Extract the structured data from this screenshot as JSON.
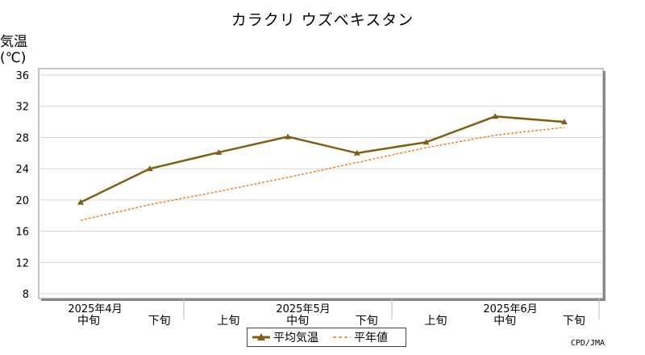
{
  "chart_data": {
    "type": "line",
    "title": "カラクリ ウズベキスタン",
    "ylabel_line1": "気温",
    "ylabel_line2": "(℃)",
    "ylim": [
      8,
      36
    ],
    "yticks": [
      "8",
      "12",
      "16",
      "20",
      "24",
      "28",
      "32",
      "36"
    ],
    "categories": [
      "中旬",
      "下旬",
      "上旬",
      "中旬",
      "下旬",
      "上旬",
      "中旬",
      "下旬"
    ],
    "month_labels": [
      "2025年4月",
      "2025年5月",
      "2025年6月"
    ],
    "series": [
      {
        "name": "平均気温",
        "color": "#7f6010",
        "style": "solid-triangle",
        "values": [
          19.7,
          24.0,
          26.1,
          28.1,
          26.0,
          27.4,
          30.7,
          30.0
        ]
      },
      {
        "name": "平年値",
        "color": "#f07a1e",
        "style": "dashed",
        "values": [
          17.4,
          19.4,
          21.1,
          22.9,
          24.8,
          26.7,
          28.3,
          29.3
        ]
      }
    ],
    "grid": true,
    "legend_position": "bottom-center"
  },
  "credit": "CPD/JMA"
}
